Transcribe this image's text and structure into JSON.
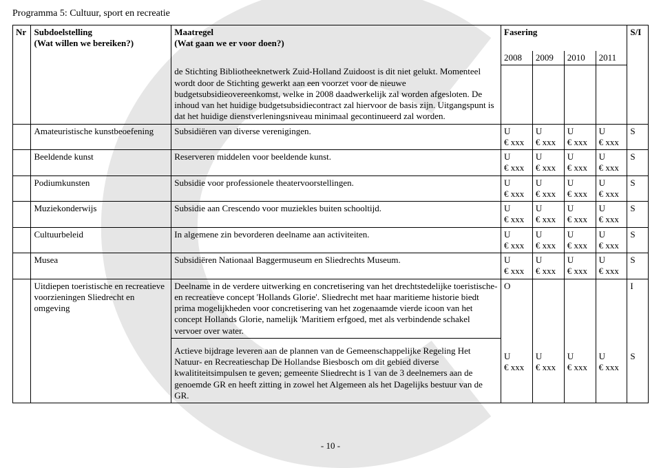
{
  "page": {
    "title": "Programma 5: Cultuur, sport en recreatie",
    "number": "- 10 -"
  },
  "header": {
    "nr": "Nr",
    "subdoelstelling": "Subdoelstelling",
    "subdoelstelling_sub": "(Wat willen we bereiken?)",
    "maatregel": "Maatregel",
    "maatregel_sub": "(Wat gaan we er voor doen?)",
    "fasering": "Fasering",
    "si": "S/I",
    "y2008": "2008",
    "y2009": "2009",
    "y2010": "2010",
    "y2011": "2011"
  },
  "intro_text": "de Stichting Bibliotheeknetwerk Zuid-Holland Zuidoost is dit niet gelukt. Momenteel wordt door de Stichting gewerkt aan een voorzet voor de nieuwe budgetsubsidieovereenkomst, welke in 2008 daadwerkelijk zal worden afgesloten. De inhoud van het huidige budgetsubsidiecontract zal hiervoor de basis zijn. Uitgangspunt is dat het huidige dienstverleningsniveau minimaal gecontinueerd zal worden.",
  "rows": [
    {
      "sub": "Amateuristische kunstbeoefening",
      "maat": "Subsidiëren van diverse verenigingen.",
      "y2008": "U\n€ xxx",
      "y2009": "U\n€ xxx",
      "y2010": "U\n€ xxx",
      "y2011": "U\n€ xxx",
      "si": "S"
    },
    {
      "sub": "Beeldende kunst",
      "maat": "Reserveren middelen voor beeldende kunst.",
      "y2008": "U\n€ xxx",
      "y2009": "U\n€ xxx",
      "y2010": "U\n€ xxx",
      "y2011": "U\n€ xxx",
      "si": "S"
    },
    {
      "sub": "Podiumkunsten",
      "maat": "Subsidie voor professionele theatervoorstellingen.",
      "y2008": "U\n€ xxx",
      "y2009": "U\n€ xxx",
      "y2010": "U\n€ xxx",
      "y2011": "U\n€ xxx",
      "si": "S"
    },
    {
      "sub": "Muziekonderwijs",
      "maat": "Subsidie aan Crescendo voor muziekles buiten schooltijd.",
      "y2008": "U\n€ xxx",
      "y2009": "U\n€ xxx",
      "y2010": "U\n€ xxx",
      "y2011": "U\n€ xxx",
      "si": "S"
    },
    {
      "sub": "Cultuurbeleid",
      "maat": "In algemene zin bevorderen deelname aan activiteiten.",
      "y2008": "U\n€ xxx",
      "y2009": "U\n€ xxx",
      "y2010": "U\n€ xxx",
      "y2011": "U\n€ xxx",
      "si": "S"
    },
    {
      "sub": "Musea",
      "maat": "Subsidiëren  Nationaal Baggermuseum en Sliedrechts Museum.",
      "y2008": "U\n€ xxx",
      "y2009": "U\n€ xxx",
      "y2010": "U\n€ xxx",
      "y2011": "U\n€ xxx",
      "si": "S"
    },
    {
      "sub": "Uitdiepen toeristische en recreatieve voorzieningen Sliedrecht en omgeving",
      "maat": "Deelname in de verdere uitwerking en concretisering van het drechtstedelijke toeristische- en recreatieve concept 'Hollands Glorie'. Sliedrecht met haar maritieme historie biedt prima mogelijkheden voor concretisering van het zogenaamde vierde icoon van het concept Hollands Glorie, namelijk 'Maritiem erfgoed, met als verbindende schakel vervoer over water.",
      "y2008": "O",
      "y2009": "",
      "y2010": "",
      "y2011": "",
      "si": "I"
    },
    {
      "sub": "",
      "maat": "Actieve bijdrage leveren aan de plannen van de Gemeenschappelijke Regeling Het Natuur- en Recreatieschap De Hollandse Biesbosch om dit gebied diverse kwalititeitsimpulsen te geven; gemeente Sliedrecht is 1 van de 3 deelnemers aan de genoemde GR en heeft zitting in zowel het Algemeen als het Dagelijks bestuur van de GR.",
      "y2008": "\nU\n€ xxx",
      "y2009": "\nU\n€ xxx",
      "y2010": "\nU\n€ xxx",
      "y2011": "\nU\n€ xxx",
      "si": "\nS"
    }
  ],
  "watermark": {
    "color": "#e6e6e6",
    "outer_radius": 300,
    "stroke_width": 130
  }
}
